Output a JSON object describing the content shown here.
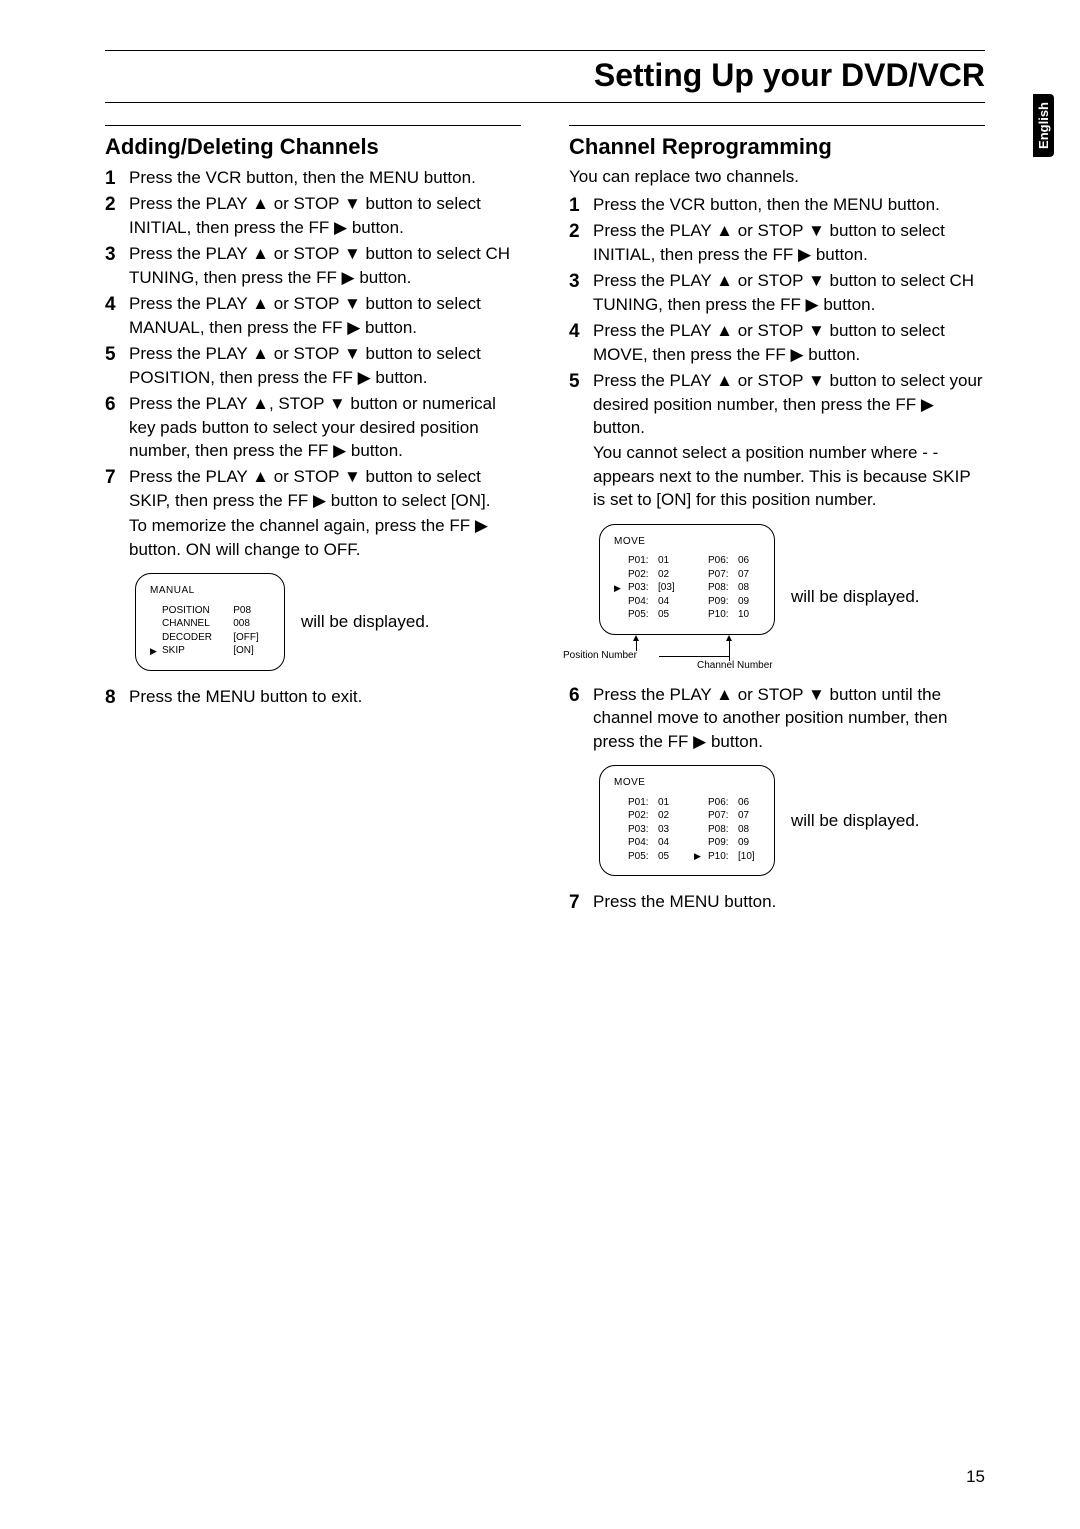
{
  "page": {
    "title": "Setting Up your DVD/VCR",
    "language_tab": "English",
    "number": "15"
  },
  "left": {
    "title": "Adding/Deleting Channels",
    "steps": [
      "Press the VCR button, then the MENU button.",
      "Press the PLAY ▲ or STOP ▼ button to select INITIAL, then press the FF ▶ button.",
      "Press the PLAY ▲ or STOP ▼ button to select CH TUNING, then press the FF ▶ button.",
      "Press the PLAY ▲ or STOP ▼ button to select MANUAL, then press the FF ▶ button.",
      "Press the PLAY ▲ or STOP ▼ button to select POSITION, then press the FF ▶ button.",
      "Press the PLAY ▲, STOP ▼ button or numerical key pads button to select your desired position number, then press the FF ▶ button.",
      "Press the PLAY ▲ or STOP ▼ button to select SKIP, then press the FF ▶ button to select [ON].",
      "Press the MENU button to exit."
    ],
    "step7_sub": "To memorize the channel again, press the FF ▶ button. ON will change to OFF.",
    "osd": {
      "title": "MANUAL",
      "rows": [
        {
          "ptr": "",
          "label": "POSITION",
          "value": "P08"
        },
        {
          "ptr": "",
          "label": "CHANNEL",
          "value": "008"
        },
        {
          "ptr": "",
          "label": "DECODER",
          "value": "[OFF]"
        },
        {
          "ptr": "▶",
          "label": "SKIP",
          "value": "[ON]"
        }
      ],
      "caption": "will be displayed."
    }
  },
  "right": {
    "title": "Channel Reprogramming",
    "intro": "You can replace two channels.",
    "steps": [
      "Press the VCR button, then the MENU button.",
      "Press the PLAY ▲ or STOP ▼ button to select INITIAL, then press the FF ▶ button.",
      "Press the PLAY ▲ or STOP ▼ button to select CH TUNING, then press the FF ▶ button.",
      "Press the PLAY ▲ or STOP ▼ button to select MOVE, then press the FF ▶ button.",
      "Press the PLAY ▲ or STOP ▼ button to select your desired position number, then press the FF ▶ button.",
      "Press the PLAY ▲ or STOP ▼ button until the channel move to another position number, then press the FF ▶ button.",
      "Press the MENU button."
    ],
    "step5_sub": "You cannot select a position number where  - - appears next to the number. This is because SKIP is set to [ON] for this position number.",
    "osd1": {
      "title": "MOVE",
      "left_rows": [
        {
          "ptr": "",
          "p": "P01:",
          "v": "01"
        },
        {
          "ptr": "",
          "p": "P02:",
          "v": "02"
        },
        {
          "ptr": "▶",
          "p": "P03:",
          "v": "[03]"
        },
        {
          "ptr": "",
          "p": "P04:",
          "v": "04"
        },
        {
          "ptr": "",
          "p": "P05:",
          "v": "05"
        }
      ],
      "right_rows": [
        {
          "ptr": "",
          "p": "P06:",
          "v": "06"
        },
        {
          "ptr": "",
          "p": "P07:",
          "v": "07"
        },
        {
          "ptr": "",
          "p": "P08:",
          "v": "08"
        },
        {
          "ptr": "",
          "p": "P09:",
          "v": "09"
        },
        {
          "ptr": "",
          "p": "P10:",
          "v": "10"
        }
      ],
      "caption": "will be displayed.",
      "annot_position": "Position Number",
      "annot_channel": "Channel Number"
    },
    "osd2": {
      "title": "MOVE",
      "left_rows": [
        {
          "ptr": "",
          "p": "P01:",
          "v": "01"
        },
        {
          "ptr": "",
          "p": "P02:",
          "v": "02"
        },
        {
          "ptr": "",
          "p": "P03:",
          "v": "03"
        },
        {
          "ptr": "",
          "p": "P04:",
          "v": "04"
        },
        {
          "ptr": "",
          "p": "P05:",
          "v": "05"
        }
      ],
      "right_rows": [
        {
          "ptr": "",
          "p": "P06:",
          "v": "06"
        },
        {
          "ptr": "",
          "p": "P07:",
          "v": "07"
        },
        {
          "ptr": "",
          "p": "P08:",
          "v": "08"
        },
        {
          "ptr": "",
          "p": "P09:",
          "v": "09"
        },
        {
          "ptr": "▶",
          "p": "P10:",
          "v": "[10]"
        }
      ],
      "caption": "will be displayed."
    }
  }
}
